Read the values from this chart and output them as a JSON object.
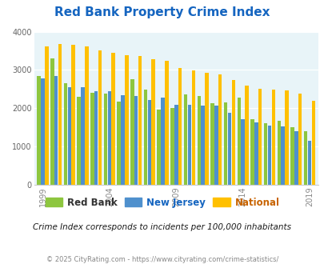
{
  "title": "Red Bank Property Crime Index",
  "subtitle": "Crime Index corresponds to incidents per 100,000 inhabitants",
  "footer": "© 2025 CityRating.com - https://www.cityrating.com/crime-statistics/",
  "years": [
    1999,
    2000,
    2001,
    2002,
    2003,
    2004,
    2005,
    2006,
    2007,
    2008,
    2009,
    2010,
    2011,
    2012,
    2013,
    2014,
    2015,
    2016,
    2017,
    2018,
    2019
  ],
  "red_bank": [
    2850,
    3300,
    2650,
    2300,
    2400,
    2390,
    2170,
    2750,
    2490,
    1960,
    2000,
    2370,
    2330,
    2140,
    2160,
    2270,
    1710,
    1600,
    1680,
    1505,
    1400
  ],
  "new_jersey": [
    2780,
    2840,
    2560,
    2560,
    2440,
    2450,
    2350,
    2310,
    2210,
    2280,
    2100,
    2090,
    2070,
    2060,
    1890,
    1720,
    1620,
    1540,
    1520,
    1390,
    1140
  ],
  "national": [
    3620,
    3670,
    3660,
    3610,
    3520,
    3450,
    3395,
    3370,
    3290,
    3230,
    3050,
    2980,
    2920,
    2880,
    2740,
    2600,
    2510,
    2480,
    2470,
    2380,
    2190
  ],
  "color_red_bank": "#8dc63f",
  "color_nj": "#4f90cd",
  "color_national": "#ffc000",
  "color_title": "#1565c0",
  "color_legend_rb": "#333333",
  "color_legend_nj": "#1565c0",
  "color_legend_nat": "#c86400",
  "color_subtitle": "#1a1a1a",
  "color_footer": "#888888",
  "bg_color": "#e8f4f8",
  "ylim": [
    0,
    4000
  ],
  "yticks": [
    0,
    1000,
    2000,
    3000,
    4000
  ],
  "xtick_years": [
    1999,
    2004,
    2009,
    2014,
    2019
  ],
  "legend_labels": [
    "Red Bank",
    "New Jersey",
    "National"
  ]
}
